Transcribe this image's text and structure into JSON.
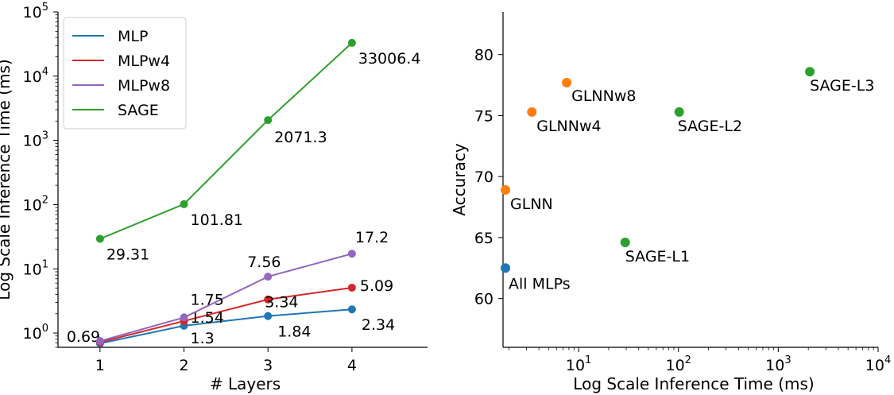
{
  "chart_data": [
    {
      "type": "line",
      "xlabel": "# Layers",
      "ylabel": "Log Scale Inference Time (ms)",
      "yscale": "log",
      "xlim": [
        0.5,
        4.9
      ],
      "ylim": [
        0.6,
        100000
      ],
      "x": [
        1,
        2,
        3,
        4
      ],
      "x_ticks": [
        1,
        2,
        3,
        4
      ],
      "legend_position": "upper-left",
      "grid": false,
      "series": [
        {
          "name": "MLP",
          "color": "#1f77b4",
          "values": [
            0.69,
            1.3,
            1.84,
            2.34
          ],
          "labels": [
            "0.69",
            "1.3",
            "1.84",
            "2.34"
          ]
        },
        {
          "name": "MLPw4",
          "color": "#d62728",
          "values": [
            0.72,
            1.54,
            3.34,
            5.09
          ],
          "labels": [
            "",
            "1.54",
            "3.34",
            "5.09"
          ]
        },
        {
          "name": "MLPw8",
          "color": "#9467bd",
          "values": [
            0.75,
            1.75,
            7.56,
            17.2
          ],
          "labels": [
            "",
            "1.75",
            "7.56",
            "17.2"
          ]
        },
        {
          "name": "SAGE",
          "color": "#2ca02c",
          "values": [
            29.31,
            101.81,
            2071.3,
            33006.4
          ],
          "labels": [
            "29.31",
            "101.81",
            "2071.3",
            "33006.4"
          ]
        }
      ]
    },
    {
      "type": "scatter",
      "xlabel": "Log Scale Inference Time (ms)",
      "ylabel": "Accuracy",
      "xscale": "log",
      "xlim": [
        1.75,
        10000
      ],
      "ylim": [
        56,
        83.5
      ],
      "y_ticks": [
        60,
        65,
        70,
        75,
        80
      ],
      "grid": false,
      "points": [
        {
          "label": "All MLPs",
          "x": 1.85,
          "y": 62.5,
          "color": "#1f77b4"
        },
        {
          "label": "GLNN",
          "x": 1.85,
          "y": 68.9,
          "color": "#ff7f0e"
        },
        {
          "label": "GLNNw4",
          "x": 3.4,
          "y": 75.3,
          "color": "#ff7f0e"
        },
        {
          "label": "GLNNw8",
          "x": 7.6,
          "y": 77.7,
          "color": "#ff7f0e"
        },
        {
          "label": "SAGE-L1",
          "x": 29.3,
          "y": 64.6,
          "color": "#2ca02c"
        },
        {
          "label": "SAGE-L2",
          "x": 101.8,
          "y": 75.3,
          "color": "#2ca02c"
        },
        {
          "label": "SAGE-L3",
          "x": 2071.3,
          "y": 78.6,
          "color": "#2ca02c"
        }
      ]
    }
  ]
}
